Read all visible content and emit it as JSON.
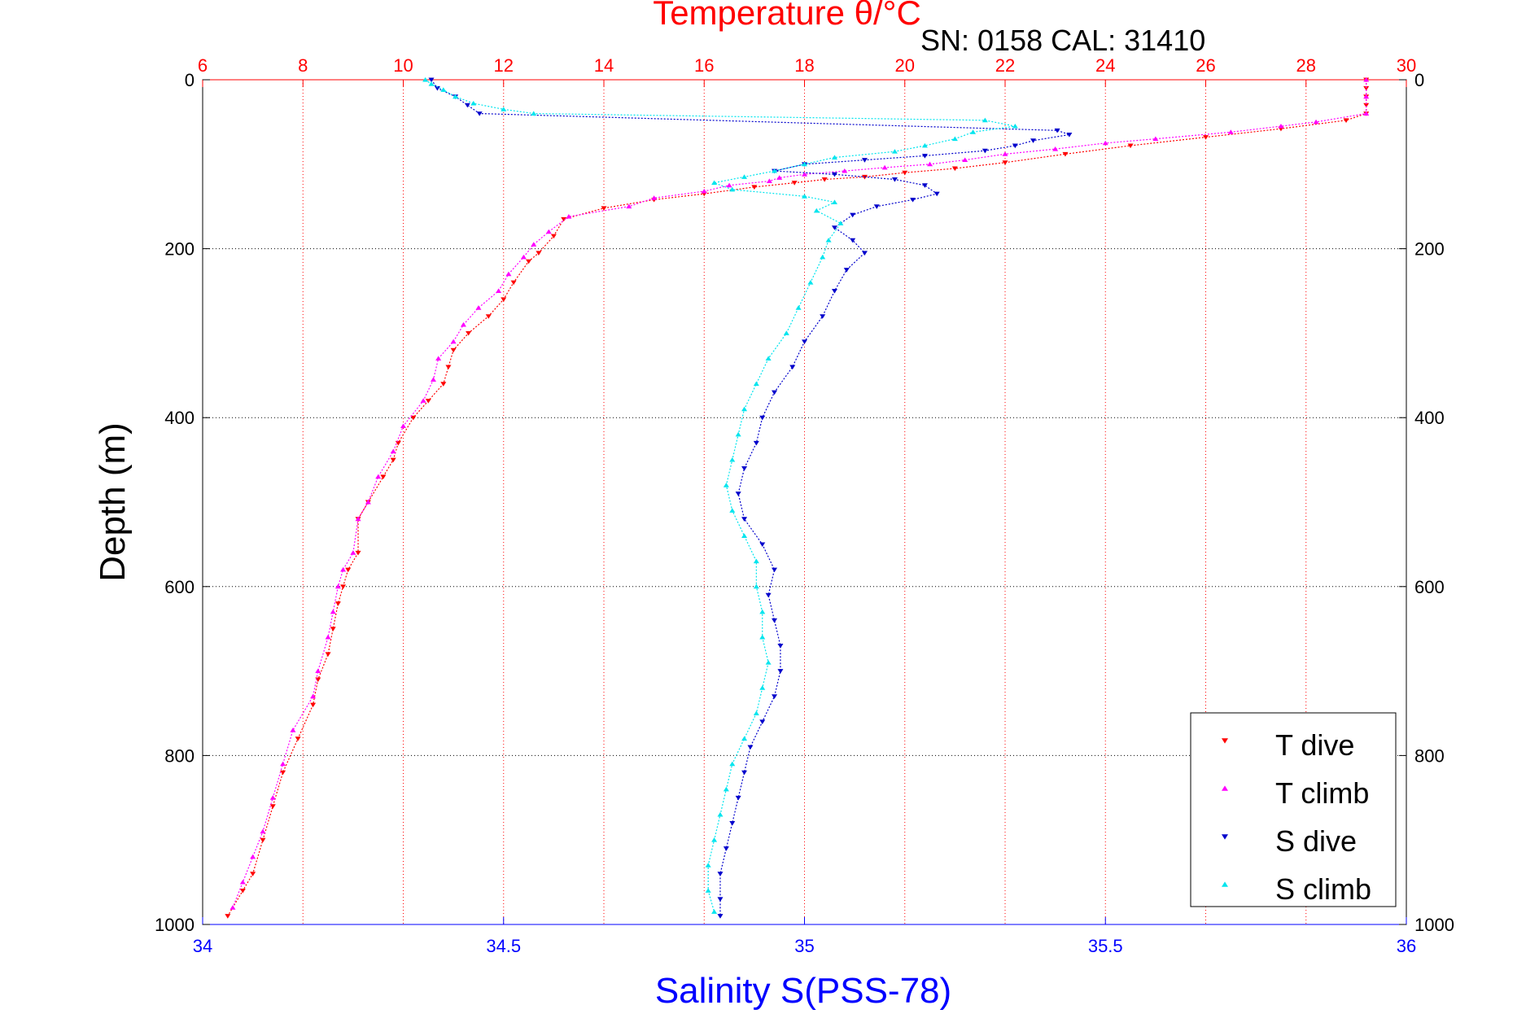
{
  "chart_data": {
    "type": "scatter",
    "title_top": "Temperature θ/°C",
    "annotation": "SN: 0158  CAL: 31410",
    "xlabel_bottom": "Salinity S(PSS-78)",
    "ylabel": "Depth (m)",
    "x_top": {
      "label": "Temperature θ/°C",
      "lim": [
        6,
        30
      ],
      "ticks": [
        "6",
        "8",
        "10",
        "12",
        "14",
        "16",
        "18",
        "20",
        "22",
        "24",
        "26",
        "28",
        "30"
      ],
      "color": "#ff0000"
    },
    "x_bottom": {
      "label": "Salinity S(PSS-78)",
      "lim": [
        34,
        36
      ],
      "ticks": [
        "34",
        "34.5",
        "35",
        "35.5",
        "36"
      ],
      "color": "#0000ff"
    },
    "y": {
      "lim": [
        0,
        1000
      ],
      "reversed": true,
      "ticks": [
        "0",
        "200",
        "400",
        "600",
        "800",
        "1000"
      ]
    },
    "grid": true,
    "legend_position": "bottom-right",
    "legend": [
      {
        "label": "T dive",
        "color": "#ff0000",
        "marker": "triangle-down"
      },
      {
        "label": "T climb",
        "color": "#ff00ff",
        "marker": "triangle-up"
      },
      {
        "label": "S dive",
        "color": "#0000cc",
        "marker": "triangle-down"
      },
      {
        "label": "S climb",
        "color": "#00e5ee",
        "marker": "triangle-up"
      }
    ],
    "series": [
      {
        "name": "T dive",
        "axis": "temperature",
        "color": "#ff0000",
        "points": [
          [
            29.2,
            0
          ],
          [
            29.2,
            10
          ],
          [
            29.2,
            20
          ],
          [
            29.2,
            30
          ],
          [
            29.2,
            40
          ],
          [
            28.8,
            48
          ],
          [
            27.5,
            58
          ],
          [
            26,
            68
          ],
          [
            24.5,
            78
          ],
          [
            23.2,
            88
          ],
          [
            22,
            98
          ],
          [
            21,
            105
          ],
          [
            20,
            110
          ],
          [
            19.2,
            115
          ],
          [
            18.4,
            118
          ],
          [
            17.8,
            122
          ],
          [
            17,
            127
          ],
          [
            16,
            135
          ],
          [
            15,
            142
          ],
          [
            14,
            152
          ],
          [
            13.2,
            165
          ],
          [
            13,
            185
          ],
          [
            12.7,
            205
          ],
          [
            12.5,
            215
          ],
          [
            12.2,
            240
          ],
          [
            12,
            260
          ],
          [
            11.7,
            280
          ],
          [
            11.3,
            300
          ],
          [
            11,
            320
          ],
          [
            10.9,
            340
          ],
          [
            10.8,
            360
          ],
          [
            10.5,
            380
          ],
          [
            10.2,
            400
          ],
          [
            9.9,
            430
          ],
          [
            9.8,
            450
          ],
          [
            9.6,
            470
          ],
          [
            9.3,
            500
          ],
          [
            9.1,
            520
          ],
          [
            9.1,
            560
          ],
          [
            8.9,
            580
          ],
          [
            8.8,
            600
          ],
          [
            8.7,
            620
          ],
          [
            8.6,
            650
          ],
          [
            8.5,
            680
          ],
          [
            8.3,
            710
          ],
          [
            8.2,
            740
          ],
          [
            7.9,
            780
          ],
          [
            7.6,
            820
          ],
          [
            7.4,
            860
          ],
          [
            7.2,
            900
          ],
          [
            7,
            940
          ],
          [
            6.8,
            960
          ],
          [
            6.5,
            990
          ]
        ]
      },
      {
        "name": "T climb",
        "axis": "temperature",
        "color": "#ff00ff",
        "points": [
          [
            29.2,
            0
          ],
          [
            29.2,
            20
          ],
          [
            29.2,
            40
          ],
          [
            28.2,
            50
          ],
          [
            27.5,
            55
          ],
          [
            26.5,
            62
          ],
          [
            25,
            70
          ],
          [
            24,
            75
          ],
          [
            23,
            82
          ],
          [
            22,
            88
          ],
          [
            21.2,
            95
          ],
          [
            20.5,
            100
          ],
          [
            19.6,
            104
          ],
          [
            18.8,
            108
          ],
          [
            18,
            112
          ],
          [
            17.5,
            116
          ],
          [
            17.3,
            120
          ],
          [
            16.5,
            125
          ],
          [
            16,
            132
          ],
          [
            15,
            140
          ],
          [
            14.5,
            150
          ],
          [
            13.3,
            162
          ],
          [
            12.9,
            180
          ],
          [
            12.6,
            195
          ],
          [
            12.4,
            210
          ],
          [
            12.1,
            230
          ],
          [
            11.9,
            250
          ],
          [
            11.5,
            270
          ],
          [
            11.2,
            290
          ],
          [
            11,
            310
          ],
          [
            10.7,
            330
          ],
          [
            10.6,
            355
          ],
          [
            10.4,
            380
          ],
          [
            10,
            410
          ],
          [
            9.8,
            440
          ],
          [
            9.5,
            470
          ],
          [
            9.3,
            500
          ],
          [
            9.1,
            520
          ],
          [
            9,
            560
          ],
          [
            8.8,
            580
          ],
          [
            8.7,
            600
          ],
          [
            8.6,
            630
          ],
          [
            8.5,
            660
          ],
          [
            8.3,
            700
          ],
          [
            8.2,
            730
          ],
          [
            7.8,
            770
          ],
          [
            7.6,
            810
          ],
          [
            7.4,
            850
          ],
          [
            7.2,
            890
          ],
          [
            7,
            920
          ],
          [
            6.8,
            950
          ],
          [
            6.6,
            980
          ]
        ]
      },
      {
        "name": "S dive",
        "axis": "salinity",
        "color": "#0000cc",
        "points": [
          [
            34.38,
            0
          ],
          [
            34.39,
            10
          ],
          [
            34.42,
            20
          ],
          [
            34.44,
            30
          ],
          [
            34.46,
            40
          ],
          [
            35.42,
            60
          ],
          [
            35.44,
            65
          ],
          [
            35.38,
            72
          ],
          [
            35.35,
            78
          ],
          [
            35.3,
            84
          ],
          [
            35.2,
            90
          ],
          [
            35.1,
            95
          ],
          [
            35,
            100
          ],
          [
            34.95,
            108
          ],
          [
            35.05,
            112
          ],
          [
            35.15,
            118
          ],
          [
            35.2,
            125
          ],
          [
            35.22,
            135
          ],
          [
            35.18,
            142
          ],
          [
            35.12,
            150
          ],
          [
            35.08,
            160
          ],
          [
            35.05,
            175
          ],
          [
            35.08,
            190
          ],
          [
            35.1,
            205
          ],
          [
            35.07,
            225
          ],
          [
            35.05,
            250
          ],
          [
            35.03,
            280
          ],
          [
            35,
            310
          ],
          [
            34.98,
            340
          ],
          [
            34.95,
            370
          ],
          [
            34.93,
            400
          ],
          [
            34.92,
            430
          ],
          [
            34.9,
            460
          ],
          [
            34.89,
            490
          ],
          [
            34.9,
            520
          ],
          [
            34.93,
            550
          ],
          [
            34.95,
            580
          ],
          [
            34.94,
            610
          ],
          [
            34.95,
            640
          ],
          [
            34.96,
            670
          ],
          [
            34.96,
            700
          ],
          [
            34.95,
            730
          ],
          [
            34.93,
            760
          ],
          [
            34.91,
            790
          ],
          [
            34.9,
            820
          ],
          [
            34.89,
            850
          ],
          [
            34.88,
            880
          ],
          [
            34.87,
            910
          ],
          [
            34.86,
            940
          ],
          [
            34.86,
            970
          ],
          [
            34.86,
            990
          ]
        ]
      },
      {
        "name": "S climb",
        "axis": "salinity",
        "color": "#00e5ee",
        "points": [
          [
            34.37,
            0
          ],
          [
            34.38,
            5
          ],
          [
            34.4,
            12
          ],
          [
            34.42,
            20
          ],
          [
            34.45,
            28
          ],
          [
            34.5,
            35
          ],
          [
            34.55,
            40
          ],
          [
            35.3,
            48
          ],
          [
            35.35,
            55
          ],
          [
            35.28,
            62
          ],
          [
            35.25,
            70
          ],
          [
            35.2,
            78
          ],
          [
            35.15,
            85
          ],
          [
            35.05,
            92
          ],
          [
            35,
            100
          ],
          [
            34.95,
            108
          ],
          [
            34.9,
            115
          ],
          [
            34.85,
            122
          ],
          [
            34.88,
            130
          ],
          [
            35,
            138
          ],
          [
            35.05,
            145
          ],
          [
            35.02,
            155
          ],
          [
            35.06,
            170
          ],
          [
            35.04,
            190
          ],
          [
            35.03,
            210
          ],
          [
            35.01,
            240
          ],
          [
            34.99,
            270
          ],
          [
            34.97,
            300
          ],
          [
            34.94,
            330
          ],
          [
            34.92,
            360
          ],
          [
            34.9,
            390
          ],
          [
            34.89,
            420
          ],
          [
            34.88,
            450
          ],
          [
            34.87,
            480
          ],
          [
            34.88,
            510
          ],
          [
            34.9,
            540
          ],
          [
            34.92,
            570
          ],
          [
            34.92,
            600
          ],
          [
            34.93,
            630
          ],
          [
            34.93,
            660
          ],
          [
            34.94,
            690
          ],
          [
            34.93,
            720
          ],
          [
            34.92,
            750
          ],
          [
            34.9,
            780
          ],
          [
            34.88,
            810
          ],
          [
            34.87,
            840
          ],
          [
            34.86,
            870
          ],
          [
            34.85,
            900
          ],
          [
            34.84,
            930
          ],
          [
            34.84,
            960
          ],
          [
            34.85,
            985
          ]
        ]
      }
    ]
  }
}
